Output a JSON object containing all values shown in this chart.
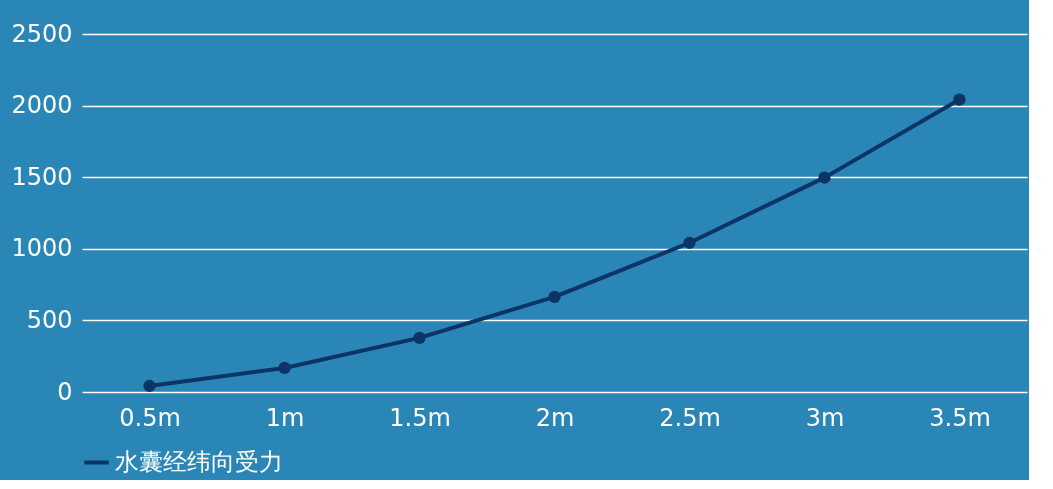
{
  "chart_data": {
    "type": "line",
    "categories": [
      "0.5m",
      "1m",
      "1.5m",
      "2m",
      "2.5m",
      "3m",
      "3.5m"
    ],
    "series": [
      {
        "name": "水囊经纬向受力",
        "color": "#0d3466",
        "values": [
          42,
          168,
          378,
          664,
          1042,
          1497,
          2042
        ]
      }
    ],
    "ylim": [
      0,
      2500
    ],
    "yticks": [
      0,
      500,
      1000,
      1500,
      2000,
      2500
    ],
    "grid": "y",
    "legend": "bottom",
    "marker": "circle",
    "line_style": "solid"
  }
}
